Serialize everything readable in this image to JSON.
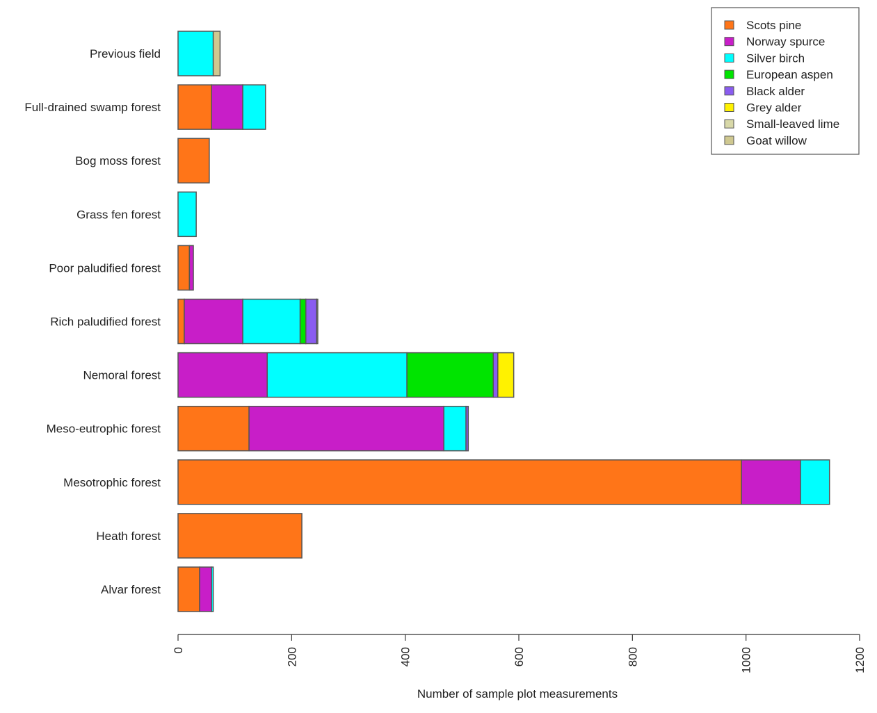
{
  "chart_data": {
    "type": "bar",
    "orientation": "horizontal",
    "stacked": true,
    "title": "",
    "xlabel": "Number of sample plot measurements",
    "ylabel": "",
    "xlim": [
      0,
      1200
    ],
    "xticks": [
      0,
      200,
      400,
      600,
      800,
      1000,
      1200
    ],
    "grid": false,
    "legend_position": "top-right",
    "categories": [
      "Previous field",
      "Full-drained swamp forest",
      "Bog moss forest",
      "Grass fen forest",
      "Poor paludified forest",
      "Rich paludified forest",
      "Nemoral forest",
      "Meso-eutrophic forest",
      "Mesotrophic forest",
      "Heath forest",
      "Alvar forest"
    ],
    "series": [
      {
        "name": "Scots pine",
        "color": "#FF7518",
        "values": [
          0,
          59,
          55,
          0,
          20,
          11,
          0,
          125,
          992,
          218,
          38
        ]
      },
      {
        "name": "Norway spurce",
        "color": "#C81EC8",
        "values": [
          0,
          55,
          0,
          0,
          7,
          103,
          157,
          343,
          104,
          0,
          21
        ]
      },
      {
        "name": "Silver birch",
        "color": "#00FFFF",
        "values": [
          62,
          40,
          0,
          32,
          0,
          101,
          246,
          39,
          51,
          0,
          3
        ]
      },
      {
        "name": "European aspen",
        "color": "#00E400",
        "values": [
          0,
          0,
          0,
          0,
          0,
          10,
          152,
          0,
          0,
          0,
          0
        ]
      },
      {
        "name": "Black alder",
        "color": "#8A5CF0",
        "values": [
          0,
          0,
          0,
          0,
          0,
          19,
          8,
          4,
          0,
          0,
          0
        ]
      },
      {
        "name": "Grey alder",
        "color": "#FFF200",
        "values": [
          0,
          0,
          0,
          0,
          0,
          0,
          28,
          0,
          0,
          0,
          0
        ]
      },
      {
        "name": "Small-leaved lime",
        "color": "#D8D8A8",
        "values": [
          0,
          0,
          0,
          0,
          0,
          2,
          0,
          0,
          0,
          0,
          0
        ]
      },
      {
        "name": "Goat willow",
        "color": "#CFC890",
        "values": [
          12,
          0,
          0,
          0,
          0,
          0,
          0,
          0,
          0,
          0,
          0
        ]
      }
    ]
  }
}
